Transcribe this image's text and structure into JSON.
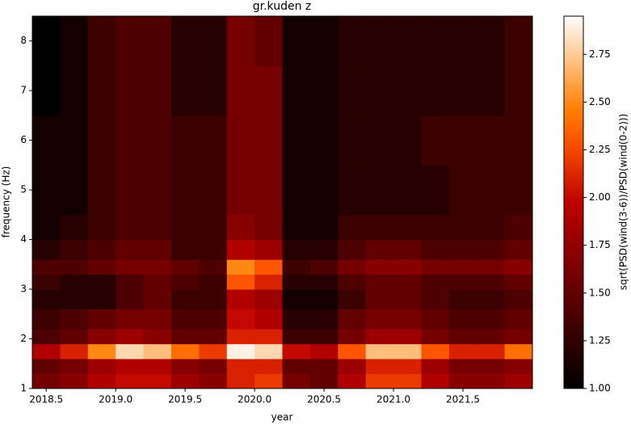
{
  "chart_data": {
    "type": "heatmap",
    "title": "gr.kuden z",
    "xlabel": "year",
    "ylabel": "frequency (Hz)",
    "colorbar_label": "sqrt(PSD(wind(3-6))/PSD(wind(0-2)))",
    "colormap": "gist_heat",
    "xlim": [
      2018.4,
      2022.0
    ],
    "ylim": [
      1,
      8.5
    ],
    "clim": [
      1,
      2.95
    ],
    "xticks": [
      2018.5,
      {
        "value": 2019,
        "label": "2019.0"
      },
      2019.5,
      {
        "value": 2020,
        "label": "2020.0"
      },
      2020.5,
      {
        "value": 2021,
        "label": "2021.0"
      },
      2021.5
    ],
    "yticks": [
      1,
      2,
      3,
      4,
      5,
      6,
      7,
      8
    ],
    "cticks": [
      {
        "value": 1,
        "label": "1.00"
      },
      {
        "value": 1.25,
        "label": "1.25"
      },
      {
        "value": 1.5,
        "label": "1.50"
      },
      {
        "value": 1.75,
        "label": "1.75"
      },
      {
        "value": 2,
        "label": "2.00"
      },
      {
        "value": 2.25,
        "label": "2.25"
      },
      {
        "value": 2.5,
        "label": "2.50"
      },
      {
        "value": 2.75,
        "label": "2.75"
      }
    ],
    "x_edges": [
      2018.4,
      2018.6,
      2018.8,
      2019.0,
      2019.2,
      2019.4,
      2019.6,
      2019.8,
      2020.0,
      2020.2,
      2020.4,
      2020.6,
      2020.8,
      2021.0,
      2021.2,
      2021.4,
      2021.6,
      2021.8,
      2022.0
    ],
    "y_edges": [
      1,
      1.3,
      1.6,
      1.9,
      2.2,
      2.6,
      3.0,
      3.3,
      3.6,
      4.0,
      4.5,
      5.5,
      6.5,
      7.5,
      8.5
    ],
    "z": [
      [
        1.6,
        1.7,
        1.9,
        2.0,
        2.0,
        1.8,
        1.7,
        2.1,
        2.2,
        1.6,
        1.5,
        1.9,
        2.2,
        2.2,
        1.9,
        1.7,
        1.7,
        1.8
      ],
      [
        1.5,
        1.6,
        1.8,
        1.9,
        1.9,
        1.7,
        1.6,
        2.1,
        2.1,
        1.5,
        1.5,
        1.8,
        2.1,
        2.1,
        1.8,
        1.6,
        1.6,
        1.7
      ],
      [
        1.9,
        2.1,
        2.5,
        2.8,
        2.7,
        2.4,
        2.2,
        2.9,
        2.8,
        2.0,
        1.9,
        2.3,
        2.7,
        2.7,
        2.3,
        2.1,
        2.1,
        2.4
      ],
      [
        1.4,
        1.5,
        1.7,
        1.8,
        1.7,
        1.5,
        1.5,
        2.1,
        2.1,
        1.3,
        1.3,
        1.6,
        1.8,
        1.8,
        1.6,
        1.5,
        1.5,
        1.6
      ],
      [
        1.3,
        1.4,
        1.5,
        1.6,
        1.6,
        1.4,
        1.4,
        2.0,
        1.9,
        1.2,
        1.2,
        1.5,
        1.6,
        1.6,
        1.5,
        1.4,
        1.4,
        1.5
      ],
      [
        1.2,
        1.2,
        1.2,
        1.4,
        1.5,
        1.3,
        1.3,
        1.9,
        1.8,
        1.1,
        1.1,
        1.3,
        1.5,
        1.5,
        1.4,
        1.3,
        1.3,
        1.4
      ],
      [
        1.3,
        1.2,
        1.2,
        1.4,
        1.5,
        1.4,
        1.3,
        2.3,
        2.1,
        1.2,
        1.2,
        1.4,
        1.5,
        1.5,
        1.4,
        1.4,
        1.4,
        1.5
      ],
      [
        1.4,
        1.4,
        1.5,
        1.6,
        1.6,
        1.5,
        1.4,
        2.5,
        2.3,
        1.3,
        1.4,
        1.6,
        1.7,
        1.7,
        1.6,
        1.6,
        1.6,
        1.7
      ],
      [
        1.2,
        1.3,
        1.4,
        1.5,
        1.5,
        1.3,
        1.3,
        1.9,
        1.8,
        1.2,
        1.2,
        1.4,
        1.5,
        1.5,
        1.4,
        1.4,
        1.4,
        1.5
      ],
      [
        1.1,
        1.2,
        1.3,
        1.4,
        1.4,
        1.3,
        1.3,
        1.7,
        1.6,
        1.1,
        1.1,
        1.3,
        1.3,
        1.3,
        1.3,
        1.3,
        1.3,
        1.4
      ],
      [
        1.1,
        1.1,
        1.3,
        1.4,
        1.4,
        1.3,
        1.3,
        1.6,
        1.6,
        1.1,
        1.1,
        1.2,
        1.2,
        1.2,
        1.2,
        1.3,
        1.3,
        1.3
      ],
      [
        1.1,
        1.1,
        1.3,
        1.4,
        1.4,
        1.3,
        1.3,
        1.6,
        1.6,
        1.1,
        1.1,
        1.2,
        1.2,
        1.2,
        1.3,
        1.3,
        1.3,
        1.3
      ],
      [
        1.0,
        1.1,
        1.3,
        1.4,
        1.4,
        1.2,
        1.2,
        1.6,
        1.6,
        1.1,
        1.1,
        1.2,
        1.2,
        1.2,
        1.2,
        1.2,
        1.2,
        1.3
      ],
      [
        1.0,
        1.1,
        1.3,
        1.4,
        1.4,
        1.2,
        1.2,
        1.6,
        1.5,
        1.1,
        1.1,
        1.2,
        1.2,
        1.2,
        1.2,
        1.2,
        1.2,
        1.3
      ]
    ]
  }
}
